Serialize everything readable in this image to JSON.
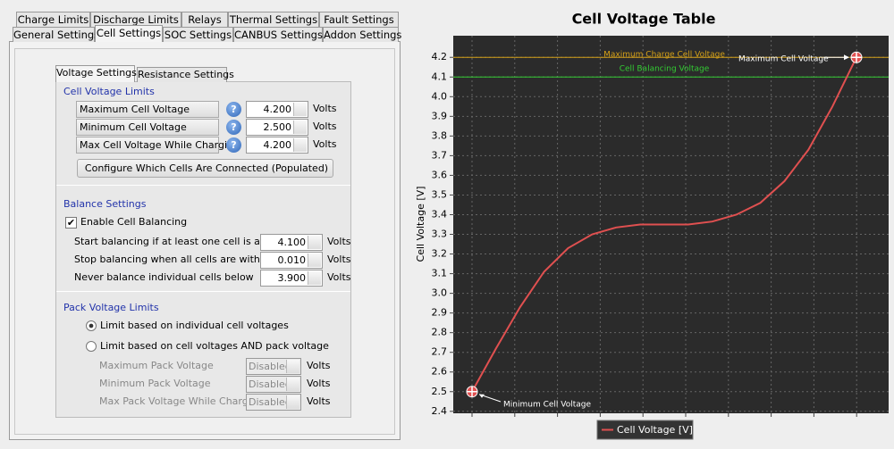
{
  "tabs": {
    "row1": [
      "Charge Limits",
      "Discharge Limits",
      "Relays",
      "Thermal Settings",
      "Fault Settings"
    ],
    "row2": [
      "General Settings",
      "Cell Settings",
      "SOC Settings",
      "CANBUS Settings",
      "Addon Settings"
    ]
  },
  "subtabs": [
    "Voltage Settings",
    "Resistance Settings"
  ],
  "cell_voltage_limits": {
    "title": "Cell Voltage Limits",
    "fields": [
      {
        "label": "Maximum Cell Voltage",
        "value": "4.200",
        "unit": "Volts"
      },
      {
        "label": "Minimum Cell Voltage",
        "value": "2.500",
        "unit": "Volts"
      },
      {
        "label": "Max Cell Voltage While Charging",
        "value": "4.200",
        "unit": "Volts"
      }
    ],
    "button": "Configure Which Cells Are Connected (Populated)"
  },
  "balance_settings": {
    "title": "Balance Settings",
    "checkbox": "Enable Cell Balancing",
    "fields": [
      {
        "label": "Start balancing if at least one cell is above",
        "value": "4.100",
        "unit": "Volts"
      },
      {
        "label": "Stop balancing when all cells are within",
        "value": "0.010",
        "unit": "Volts"
      },
      {
        "label": "Never balance individual cells below",
        "value": "3.900",
        "unit": "Volts"
      }
    ]
  },
  "pack_voltage_limits": {
    "title": "Pack Voltage Limits",
    "radios": [
      "Limit based on individual cell voltages",
      "Limit based on cell voltages AND pack voltage"
    ],
    "fields": [
      {
        "label": "Maximum Pack Voltage",
        "value": "Disabled",
        "unit": "Volts"
      },
      {
        "label": "Minimum Pack Voltage",
        "value": "Disabled",
        "unit": "Volts"
      },
      {
        "label": "Max Pack Voltage While Charging",
        "value": "Disabled",
        "unit": "Volts"
      }
    ]
  },
  "chart_data": {
    "type": "line",
    "title": "Cell Voltage Table",
    "y_label": "Cell Voltage [V]",
    "categories": [
      null,
      null,
      null,
      null,
      null,
      null,
      null,
      null,
      null,
      null,
      null,
      null,
      null,
      null,
      null,
      null,
      null
    ],
    "series": [
      {
        "name": "Cell Voltage [V]",
        "color": "#e05050",
        "values": [
          2.5,
          2.72,
          2.93,
          3.11,
          3.23,
          3.3,
          3.335,
          3.35,
          3.35,
          3.35,
          3.365,
          3.4,
          3.46,
          3.57,
          3.73,
          3.95,
          4.2
        ]
      }
    ],
    "ylim": [
      2.39,
      4.31
    ],
    "yticks": [
      {
        "value": 2.4,
        "label": "2.4"
      },
      {
        "value": 2.5,
        "label": "2.5"
      },
      {
        "value": 2.6,
        "label": "2.6"
      },
      {
        "value": 2.7,
        "label": "2.7"
      },
      {
        "value": 2.8,
        "label": "2.8"
      },
      {
        "value": 2.9,
        "label": "2.9"
      },
      {
        "value": 3.0,
        "label": "3.0"
      },
      {
        "value": 3.1,
        "label": "3.1"
      },
      {
        "value": 3.2,
        "label": "3.2"
      },
      {
        "value": 3.3,
        "label": "3.3"
      },
      {
        "value": 3.4,
        "label": "3.4"
      },
      {
        "value": 3.5,
        "label": "3.5"
      },
      {
        "value": 3.6,
        "label": "3.6"
      },
      {
        "value": 3.7,
        "label": "3.7"
      },
      {
        "value": 3.8,
        "label": "3.8"
      },
      {
        "value": 3.9,
        "label": "3.9"
      },
      {
        "value": 4.0,
        "label": "4.0"
      },
      {
        "value": 4.1,
        "label": "4.1"
      },
      {
        "value": 4.2,
        "label": "4.2"
      }
    ],
    "grid": true,
    "reference_lines": [
      {
        "label": "Maximum Charge Cell Voltage",
        "value": 4.2,
        "color": "#d4a017"
      },
      {
        "label": "Cell Balancing Voltage",
        "value": 4.1,
        "color": "#33cc33"
      }
    ],
    "annotations": [
      {
        "text": "Minimum Cell Voltage"
      },
      {
        "text": "Maximum Cell Voltage"
      }
    ],
    "legend": "bottom"
  }
}
